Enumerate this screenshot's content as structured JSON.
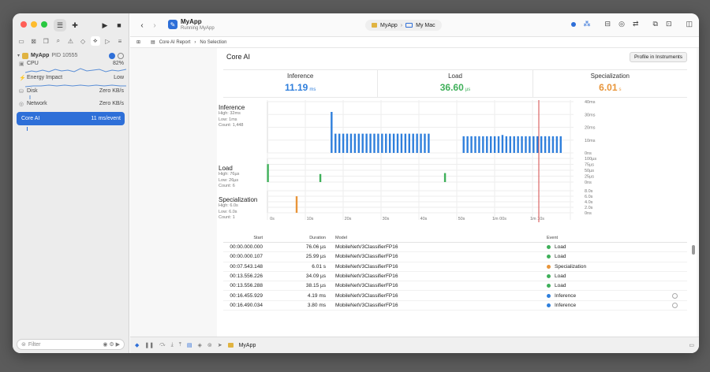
{
  "window": {
    "traffic_colors": [
      "#ff5f57",
      "#febc2e",
      "#28c840"
    ]
  },
  "toolbar": {
    "app_name": "MyApp",
    "app_status": "Running MyApp",
    "scheme": "MyApp",
    "destination": "My Mac",
    "run_icon": "play-icon",
    "stop_icon": "stop-icon"
  },
  "sidebar": {
    "process": {
      "name": "MyApp",
      "pid": "PID 10555"
    },
    "gauges": [
      {
        "label": "CPU",
        "value": "82%",
        "icon": "cpu-icon"
      },
      {
        "label": "Energy Impact",
        "value": "Low",
        "icon": "bolt-icon"
      },
      {
        "label": "Disk",
        "value": "Zero KB/s",
        "icon": "disk-icon"
      },
      {
        "label": "Network",
        "value": "Zero KB/s",
        "icon": "network-icon"
      }
    ],
    "selected": {
      "label": "Core AI",
      "value": "11 ms/event"
    },
    "filter_placeholder": "Filter"
  },
  "pathbar": {
    "report": "Core AI Report",
    "selection": "No Selection"
  },
  "panel": {
    "title": "Core AI",
    "profile_button": "Profile in Instruments",
    "stats": [
      {
        "name": "Inference",
        "value": "11.19",
        "unit": "ms",
        "color": "#2f7fdc"
      },
      {
        "name": "Load",
        "value": "36.60",
        "unit": "µs",
        "color": "#3fb05a"
      },
      {
        "name": "Specialization",
        "value": "6.01",
        "unit": "s",
        "color": "#e8953a"
      }
    ]
  },
  "lanes": {
    "inference": {
      "title": "Inference",
      "high": "High: 32ms",
      "low": "Low: 1ms",
      "count": "Count: 1,448"
    },
    "load": {
      "title": "Load",
      "high": "High: 76µs",
      "low": "Low: 26µs",
      "count": "Count: 6"
    },
    "specialization": {
      "title": "Specialization",
      "high": "High: 6.0s",
      "low": "Low: 6.0s",
      "count": "Count: 1"
    }
  },
  "chart_data": [
    {
      "type": "bar",
      "title": "Inference",
      "color": "#2f7fdc",
      "y_ticks": [
        "40ms",
        "30ms",
        "20ms",
        "10ms",
        "0ns"
      ],
      "ylim": [
        0,
        40
      ],
      "x_ticks": [
        "0s",
        "10s",
        "20s",
        "30s",
        "40s",
        "50s",
        "1m 00s",
        "1m 10s"
      ],
      "xlim": [
        0,
        78
      ],
      "x": [
        16.5,
        17.5,
        18.5,
        19.5,
        20.5,
        21.5,
        22.5,
        23.5,
        24.5,
        25.5,
        26.5,
        27.5,
        28.5,
        29.5,
        30.5,
        31.5,
        32.5,
        33.5,
        34.5,
        35.5,
        36.5,
        37.5,
        38.5,
        39.5,
        40.5,
        41.5,
        50.5,
        51.5,
        52.5,
        53.5,
        54.5,
        55.5,
        56.5,
        57.5,
        58.5,
        59.5,
        60.5,
        61.5,
        62.5,
        63.5,
        64.5,
        65.5,
        66.5,
        67.5,
        68.5,
        69.5,
        70.5,
        71.5,
        72.5,
        73.5,
        74.5,
        75.5
      ],
      "values": [
        32,
        15,
        15,
        15,
        15,
        15,
        15,
        15,
        15,
        15,
        15,
        15,
        15,
        15,
        15,
        15,
        15,
        15,
        15,
        15,
        15,
        15,
        15,
        15,
        15,
        15,
        13,
        13,
        13,
        13,
        13,
        13,
        13,
        13,
        13,
        13,
        14,
        13,
        13,
        13,
        13,
        13,
        13,
        13,
        13,
        13,
        13,
        13,
        13,
        13,
        13,
        13
      ]
    },
    {
      "type": "bar",
      "title": "Load",
      "color": "#3fb05a",
      "y_ticks": [
        "100µs",
        "75µs",
        "50µs",
        "25µs",
        "0ns"
      ],
      "ylim": [
        0,
        100
      ],
      "x": [
        0.1,
        13.6,
        45.7
      ],
      "values": [
        76,
        34,
        38
      ]
    },
    {
      "type": "bar",
      "title": "Specialization",
      "color": "#e8953a",
      "y_ticks": [
        "8.0s",
        "6.0s",
        "4.0s",
        "2.0s",
        "0ns"
      ],
      "ylim": [
        0,
        8
      ],
      "x": [
        7.5
      ],
      "values": [
        6.0
      ]
    }
  ],
  "table": {
    "headers": {
      "start": "Start",
      "duration": "Duration",
      "model": "Model",
      "event": "Event"
    },
    "rows": [
      {
        "start": "00:00.000.000",
        "duration": "76.06 µs",
        "model": "MobileNetV3ClassifierFP16",
        "event": "Load",
        "color": "#3fb05a"
      },
      {
        "start": "00:00.000.107",
        "duration": "25.99 µs",
        "model": "MobileNetV3ClassifierFP16",
        "event": "Load",
        "color": "#3fb05a"
      },
      {
        "start": "00:07.543.148",
        "duration": "6.01 s",
        "model": "MobileNetV3ClassifierFP16",
        "event": "Specialization",
        "color": "#e8953a"
      },
      {
        "start": "00:13.556.226",
        "duration": "34.09 µs",
        "model": "MobileNetV3ClassifierFP16",
        "event": "Load",
        "color": "#3fb05a"
      },
      {
        "start": "00:13.556.288",
        "duration": "38.15 µs",
        "model": "MobileNetV3ClassifierFP16",
        "event": "Load",
        "color": "#3fb05a"
      },
      {
        "start": "00:16.455.929",
        "duration": "4.19 ms",
        "model": "MobileNetV3ClassifierFP16",
        "event": "Inference",
        "color": "#2f7fdc"
      },
      {
        "start": "00:16.490.034",
        "duration": "3.80 ms",
        "model": "MobileNetV3ClassifierFP16",
        "event": "Inference",
        "color": "#2f7fdc"
      }
    ]
  },
  "statusbar": {
    "app": "MyApp"
  }
}
